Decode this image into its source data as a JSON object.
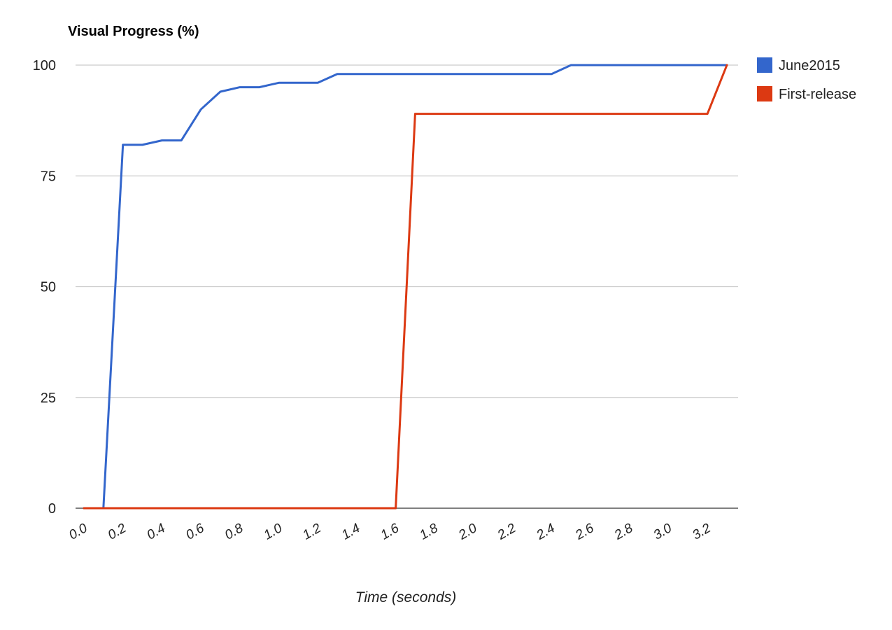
{
  "chart_data": {
    "type": "line",
    "title": "Visual Progress (%)",
    "xlabel": "Time (seconds)",
    "ylabel": "",
    "xlim": [
      0.0,
      3.4
    ],
    "ylim": [
      0,
      100
    ],
    "yticks": [
      0,
      25,
      50,
      75,
      100
    ],
    "xticks": [
      0.0,
      0.2,
      0.4,
      0.6,
      0.8,
      1.0,
      1.2,
      1.4,
      1.6,
      1.8,
      2.0,
      2.2,
      2.4,
      2.6,
      2.8,
      3.0,
      3.2
    ],
    "xtick_labels": [
      "0.0",
      "0.2",
      "0.4",
      "0.6",
      "0.8",
      "1.0",
      "1.2",
      "1.4",
      "1.6",
      "1.8",
      "2.0",
      "2.2",
      "2.4",
      "2.6",
      "2.8",
      "3.0",
      "3.2"
    ],
    "grid": true,
    "legend_position": "right",
    "series": [
      {
        "name": "June2015",
        "color": "#3366cc",
        "points": [
          [
            0.0,
            0
          ],
          [
            0.1,
            0
          ],
          [
            0.2,
            82
          ],
          [
            0.3,
            82
          ],
          [
            0.4,
            83
          ],
          [
            0.5,
            83
          ],
          [
            0.6,
            90
          ],
          [
            0.7,
            94
          ],
          [
            0.8,
            95
          ],
          [
            0.9,
            95
          ],
          [
            1.0,
            96
          ],
          [
            1.1,
            96
          ],
          [
            1.2,
            96
          ],
          [
            1.3,
            98
          ],
          [
            1.4,
            98
          ],
          [
            1.5,
            98
          ],
          [
            1.6,
            98
          ],
          [
            1.7,
            98
          ],
          [
            1.8,
            98
          ],
          [
            1.9,
            98
          ],
          [
            2.0,
            98
          ],
          [
            2.1,
            98
          ],
          [
            2.2,
            98
          ],
          [
            2.3,
            98
          ],
          [
            2.4,
            98
          ],
          [
            2.5,
            100
          ],
          [
            2.6,
            100
          ],
          [
            2.7,
            100
          ],
          [
            2.8,
            100
          ],
          [
            2.9,
            100
          ],
          [
            3.0,
            100
          ],
          [
            3.1,
            100
          ],
          [
            3.2,
            100
          ],
          [
            3.3,
            100
          ]
        ]
      },
      {
        "name": "First-release",
        "color": "#dc3912",
        "points": [
          [
            0.0,
            0
          ],
          [
            0.1,
            0
          ],
          [
            0.2,
            0
          ],
          [
            0.3,
            0
          ],
          [
            0.4,
            0
          ],
          [
            0.5,
            0
          ],
          [
            0.6,
            0
          ],
          [
            0.7,
            0
          ],
          [
            0.8,
            0
          ],
          [
            0.9,
            0
          ],
          [
            1.0,
            0
          ],
          [
            1.1,
            0
          ],
          [
            1.2,
            0
          ],
          [
            1.3,
            0
          ],
          [
            1.4,
            0
          ],
          [
            1.5,
            0
          ],
          [
            1.6,
            0
          ],
          [
            1.7,
            89
          ],
          [
            1.8,
            89
          ],
          [
            1.9,
            89
          ],
          [
            2.0,
            89
          ],
          [
            2.1,
            89
          ],
          [
            2.2,
            89
          ],
          [
            2.3,
            89
          ],
          [
            2.4,
            89
          ],
          [
            2.5,
            89
          ],
          [
            2.6,
            89
          ],
          [
            2.7,
            89
          ],
          [
            2.8,
            89
          ],
          [
            2.9,
            89
          ],
          [
            3.0,
            89
          ],
          [
            3.1,
            89
          ],
          [
            3.2,
            89
          ],
          [
            3.3,
            100
          ]
        ]
      }
    ]
  }
}
